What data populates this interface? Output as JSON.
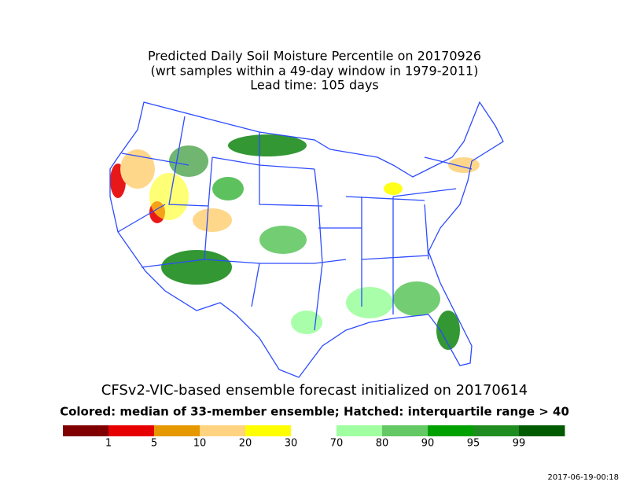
{
  "title": [
    "Predicted Daily Soil Moisture Percentile on 20170926",
    "(wrt samples within a 49-day window in 1979-2011)",
    "Lead time: 105 days"
  ],
  "forecast_caption": "CFSv2-VIC-based ensemble forecast initialized on 20170614",
  "legend_caption": "Colored: median of 33-member ensemble; Hatched: interquartile range > 40",
  "colorbar": {
    "colors": [
      "#800000",
      "#e60000",
      "#e69800",
      "#ffd37f",
      "#ffff00",
      "#ffffff",
      "#a0ffa0",
      "#64c864",
      "#00a000",
      "#1e8c1e",
      "#005a00"
    ],
    "labels": [
      1,
      5,
      10,
      20,
      30,
      70,
      80,
      90,
      95,
      99
    ]
  },
  "timestamp": "2017-06-19-00:18"
}
